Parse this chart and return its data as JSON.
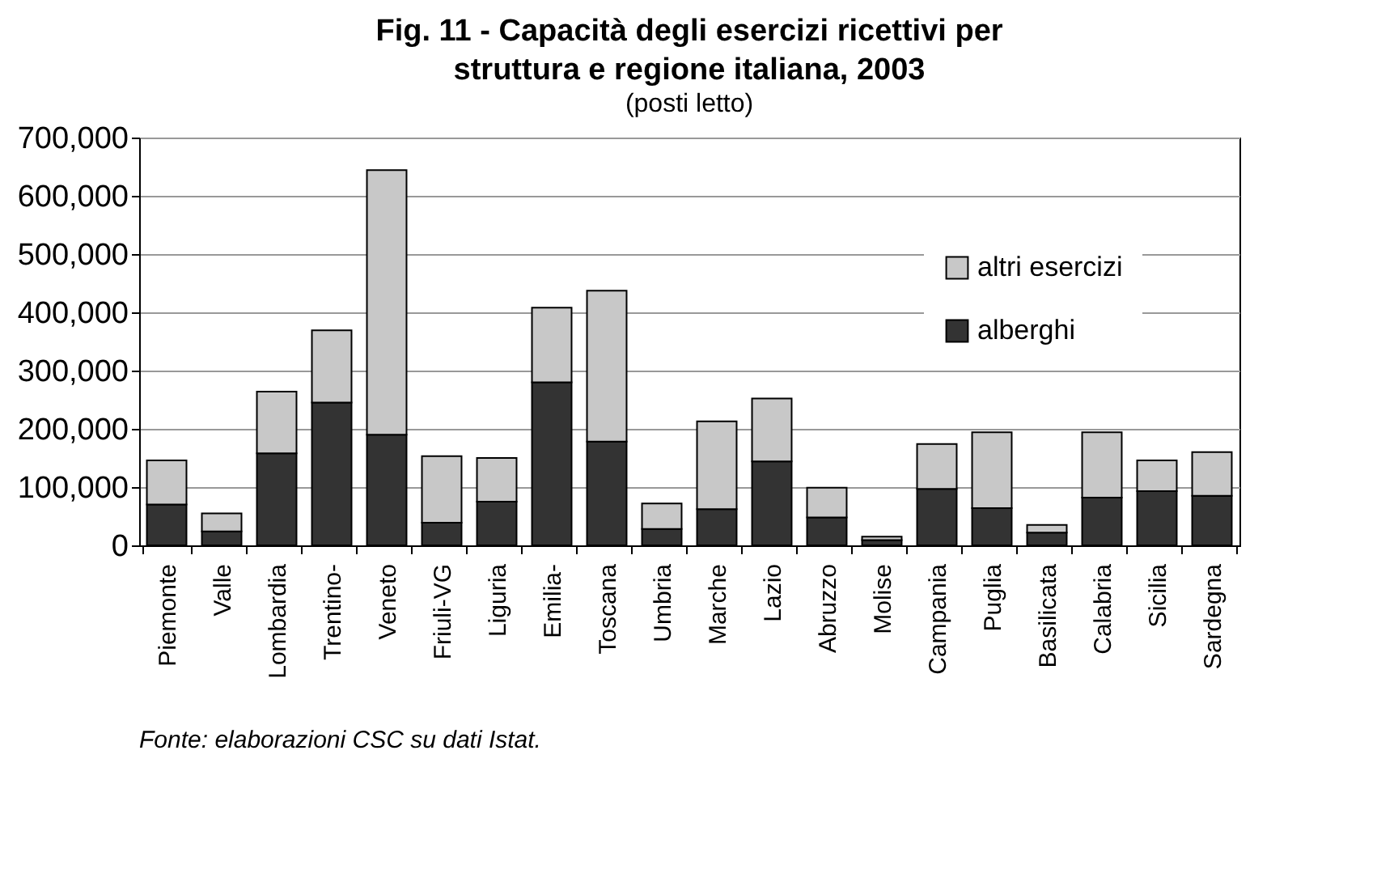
{
  "chart_data": {
    "type": "bar",
    "stacked": true,
    "title": "Fig. 11 - Capacità degli esercizi ricettivi per struttura e regione italiana, 2003",
    "subtitle": "(posti letto)",
    "categories": [
      "Piemonte",
      "Valle",
      "Lombardia",
      "Trentino-",
      "Veneto",
      "Friuli-VG",
      "Liguria",
      "Emilia-",
      "Toscana",
      "Umbria",
      "Marche",
      "Lazio",
      "Abruzzo",
      "Molise",
      "Campania",
      "Puglia",
      "Basilicata",
      "Calabria",
      "Sicilia",
      "Sardegna"
    ],
    "series": [
      {
        "name": "alberghi",
        "color": "#333333",
        "values": [
          70000,
          24000,
          158000,
          245000,
          190000,
          39000,
          75000,
          280000,
          178000,
          28000,
          62000,
          144000,
          48000,
          9000,
          97000,
          64000,
          22000,
          82000,
          93000,
          85000
        ]
      },
      {
        "name": "altri esercizi",
        "color": "#c8c8c8",
        "values": [
          76000,
          31000,
          106000,
          124000,
          454000,
          114000,
          75000,
          128000,
          259000,
          44000,
          151000,
          108000,
          51000,
          6000,
          77000,
          130000,
          13000,
          112000,
          53000,
          75000
        ]
      }
    ],
    "ylim": [
      0,
      700000
    ],
    "yticks": [
      0,
      {
        "value": 100000,
        "label": "100,000"
      },
      {
        "value": 200000,
        "label": "200,000"
      },
      {
        "value": 300000,
        "label": "300,000"
      },
      {
        "value": 400000,
        "label": "400,000"
      },
      {
        "value": 500000,
        "label": "500,000"
      },
      {
        "value": 600000,
        "label": "600,000"
      },
      {
        "value": 700000,
        "label": "700,000"
      }
    ],
    "grid": "y",
    "legend": "top right",
    "annotations": [
      "Fonte: elaborazioni CSC su dati Istat."
    ]
  }
}
